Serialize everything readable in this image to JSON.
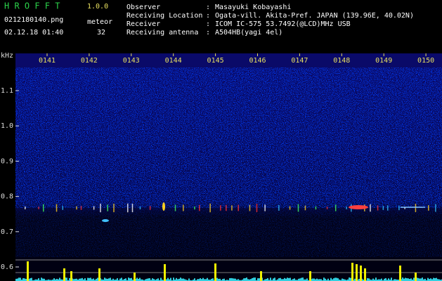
{
  "header": {
    "app": "H R O F F T",
    "version": "1.0.0",
    "file": "0212180140.png",
    "datetime": "02.12.18 01:40",
    "meteor_label": "meteor",
    "meteor_count": "32"
  },
  "info": {
    "separator": ":",
    "rows": [
      {
        "label": "Observer",
        "value": "Masayuki Kobayashi"
      },
      {
        "label": "Receiving Location",
        "value": "Ogata-vill. Akita-Pref. JAPAN (139.96E, 40.02N)"
      },
      {
        "label": "Receiver",
        "value": "ICOM IC-575 53.7492(@LCD)MHz USB"
      },
      {
        "label": "Receiving antenna",
        "value": "A504HB(yagi 4el)"
      }
    ]
  },
  "spectrogram": {
    "unit": "kHz",
    "frequency_labels": [
      "1.1",
      "1.0",
      "0.9",
      "0.8",
      "0.7",
      "0.6"
    ],
    "time_labels": [
      "0141",
      "0142",
      "0143",
      "0144",
      "0145",
      "0146",
      "0147",
      "0148",
      "0149",
      "0150"
    ]
  }
}
